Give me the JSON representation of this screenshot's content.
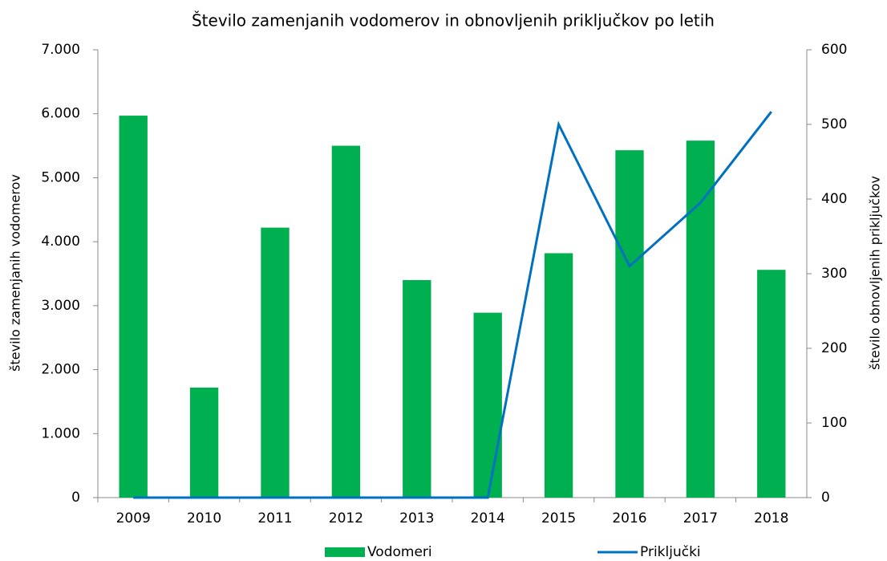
{
  "chart_data": {
    "type": "bar_line",
    "title": "Število zamenjanih vodomerov in obnovljenih priključkov po letih",
    "y_label": "število zamenjanih vodomerov",
    "y2_label": "število obnovljenih priključkov",
    "categories": [
      "2009",
      "2010",
      "2011",
      "2012",
      "2013",
      "2014",
      "2015",
      "2016",
      "2017",
      "2018"
    ],
    "series": [
      {
        "name": "Vodomeri",
        "type": "bar",
        "color": "#00b050",
        "values": [
          5970,
          1720,
          4220,
          5500,
          3400,
          2890,
          3820,
          5430,
          5580,
          3560
        ]
      },
      {
        "name": "Priključki",
        "type": "line",
        "axis": "y2",
        "color": "#0070c0",
        "values": [
          0,
          0,
          0,
          0,
          0,
          0,
          500,
          310,
          395,
          517
        ]
      }
    ],
    "ylim": [
      0,
      7000
    ],
    "yticks": [
      {
        "value": 0,
        "label": "0"
      },
      {
        "value": 1000,
        "label": "1.000"
      },
      {
        "value": 2000,
        "label": "2.000"
      },
      {
        "value": 3000,
        "label": "3.000"
      },
      {
        "value": 4000,
        "label": "4.000"
      },
      {
        "value": 5000,
        "label": "5.000"
      },
      {
        "value": 6000,
        "label": "6.000"
      },
      {
        "value": 7000,
        "label": "7.000"
      }
    ],
    "y2lim": [
      0,
      600
    ],
    "y2ticks": [
      0,
      100,
      200,
      300,
      400,
      500,
      600
    ],
    "grid": false,
    "legend": "bottom"
  }
}
